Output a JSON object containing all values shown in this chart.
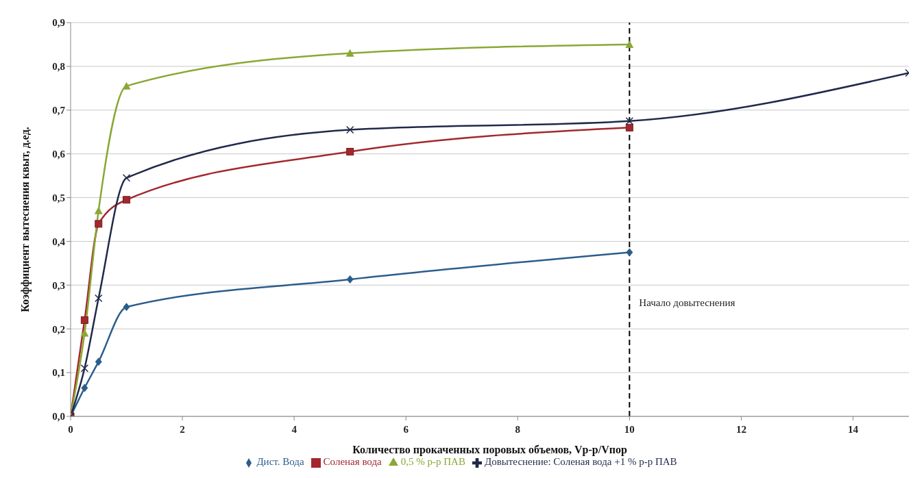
{
  "chart_data": {
    "type": "line",
    "xlabel": "Количество прокаченных поровых объемов, Vр-р/Vпор",
    "ylabel": "Коэффициент вытеснения квыт, д.ед.",
    "xlim": [
      0,
      15
    ],
    "xticks": [
      0,
      2,
      4,
      6,
      8,
      10,
      12,
      14
    ],
    "ylim": [
      0,
      0.9
    ],
    "yticks": [
      {
        "value": 0,
        "label": "0,0"
      },
      {
        "value": 0.1,
        "label": "0,1"
      },
      {
        "value": 0.2,
        "label": "0,2"
      },
      {
        "value": 0.3,
        "label": "0,3"
      },
      {
        "value": 0.4,
        "label": "0,4"
      },
      {
        "value": 0.5,
        "label": "0,5"
      },
      {
        "value": 0.6,
        "label": "0,6"
      },
      {
        "value": 0.7,
        "label": "0,7"
      },
      {
        "value": 0.8,
        "label": "0,8"
      },
      {
        "value": 0.9,
        "label": "0,9"
      }
    ],
    "grid": "y",
    "legend": "bottom",
    "line_style": "solid",
    "series": [
      {
        "name": "Дист. Вода",
        "color": "#2b5d8c",
        "marker": "diamond",
        "x": [
          0,
          0.25,
          0.5,
          1,
          5,
          10
        ],
        "values": [
          0,
          0.065,
          0.125,
          0.25,
          0.313,
          0.375
        ]
      },
      {
        "name": "Соленая вода",
        "color": "#a3282d",
        "marker": "square",
        "x": [
          0,
          0.25,
          0.5,
          1,
          5,
          10
        ],
        "values": [
          0,
          0.22,
          0.44,
          0.495,
          0.605,
          0.66
        ]
      },
      {
        "name": "0,5 % р-р ПАВ",
        "color": "#8aa835",
        "marker": "triangle",
        "x": [
          0,
          0.25,
          0.5,
          1,
          5,
          10
        ],
        "values": [
          0,
          0.19,
          0.47,
          0.755,
          0.83,
          0.85
        ]
      },
      {
        "name": "Довытеснение: Соленая вода +1 % р-р ПАВ",
        "color": "#1f2a4a",
        "marker": "cross",
        "x": [
          0,
          0.25,
          0.5,
          1,
          5,
          10,
          15
        ],
        "values": [
          0,
          0.11,
          0.27,
          0.545,
          0.655,
          0.675,
          0.785
        ]
      }
    ],
    "ref_lines": [
      {
        "axis": "x",
        "value": 10,
        "label": "Начало довытеснения",
        "color": "#000000",
        "line_style": "dashed"
      }
    ]
  }
}
